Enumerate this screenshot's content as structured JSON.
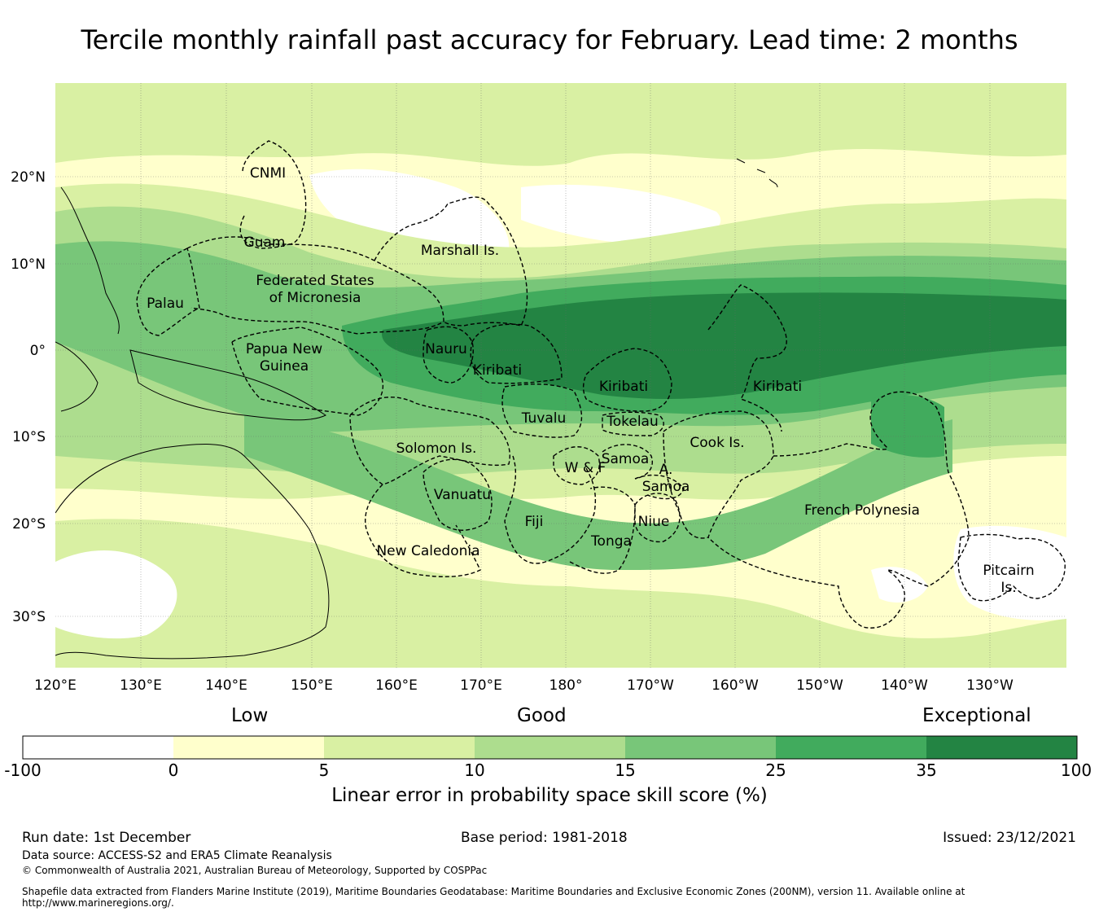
{
  "title": "Tercile monthly rainfall past accuracy for February. Lead time: 2 months",
  "colors": {
    "c_neg": "#ffffff",
    "c_0_5": "#ffffcc",
    "c_5_10": "#d9f0a3",
    "c_10_15": "#addd8e",
    "c_15_25": "#78c679",
    "c_25_35": "#41ab5d",
    "c_35_100": "#238443"
  },
  "axes": {
    "lon_labels": [
      "120°E",
      "130°E",
      "140°E",
      "150°E",
      "160°E",
      "170°E",
      "180°",
      "170°W",
      "160°W",
      "150°W",
      "140°W",
      "130°W"
    ],
    "lat_labels": [
      "20°N",
      "10°N",
      "0°",
      "10°S",
      "20°S",
      "30°S"
    ]
  },
  "regions": [
    {
      "id": "cnmi",
      "label": "CNMI"
    },
    {
      "id": "guam",
      "label": "Guam"
    },
    {
      "id": "marshall",
      "label": "Marshall Is."
    },
    {
      "id": "fsm1",
      "label": "Federated States"
    },
    {
      "id": "fsm2",
      "label": "of Micronesia"
    },
    {
      "id": "palau",
      "label": "Palau"
    },
    {
      "id": "png1",
      "label": "Papua New"
    },
    {
      "id": "png2",
      "label": "Guinea"
    },
    {
      "id": "nauru",
      "label": "Nauru"
    },
    {
      "id": "kiribati_w",
      "label": "Kiribati"
    },
    {
      "id": "kiribati_c",
      "label": "Kiribati"
    },
    {
      "id": "kiribati_e",
      "label": "Kiribati"
    },
    {
      "id": "tuvalu",
      "label": "Tuvalu"
    },
    {
      "id": "tokelau",
      "label": "Tokelau"
    },
    {
      "id": "solomon",
      "label": "Solomon Is."
    },
    {
      "id": "cook",
      "label": "Cook Is."
    },
    {
      "id": "samoa",
      "label": "Samoa"
    },
    {
      "id": "wf",
      "label": "W & F"
    },
    {
      "id": "asamoa1",
      "label": "A."
    },
    {
      "id": "asamoa2",
      "label": "Samoa"
    },
    {
      "id": "vanuatu",
      "label": "Vanuatu"
    },
    {
      "id": "fiji",
      "label": "Fiji"
    },
    {
      "id": "niue",
      "label": "Niue"
    },
    {
      "id": "tonga",
      "label": "Tonga"
    },
    {
      "id": "newcal",
      "label": "New Caledonia"
    },
    {
      "id": "frpoly",
      "label": "French Polynesia"
    },
    {
      "id": "pitcairn1",
      "label": "Pitcairn"
    },
    {
      "id": "pitcairn2",
      "label": "Is."
    }
  ],
  "colorbar": {
    "categories": [
      "Low",
      "Good",
      "Exceptional"
    ],
    "ticks": [
      "-100",
      "0",
      "5",
      "10",
      "15",
      "25",
      "35",
      "100"
    ],
    "title": "Linear error in probability space skill score (%)"
  },
  "footer": {
    "run_date": "Run date: 1st December",
    "base_period": "Base period: 1981-2018",
    "issued": "Issued: 23/12/2021",
    "data_source": "Data source: ACCESS-S2 and ERA5 Climate Reanalysis",
    "copyright": "© Commonwealth of Australia 2021, Australian Bureau of Meteorology, Supported by COSPPac",
    "shapefile": "Shapefile data extracted from Flanders Marine Institute (2019), Maritime Boundaries Geodatabase: Maritime Boundaries and Exclusive Economic Zones (200NM), version 11. Available online at http://www.marineregions.org/."
  }
}
